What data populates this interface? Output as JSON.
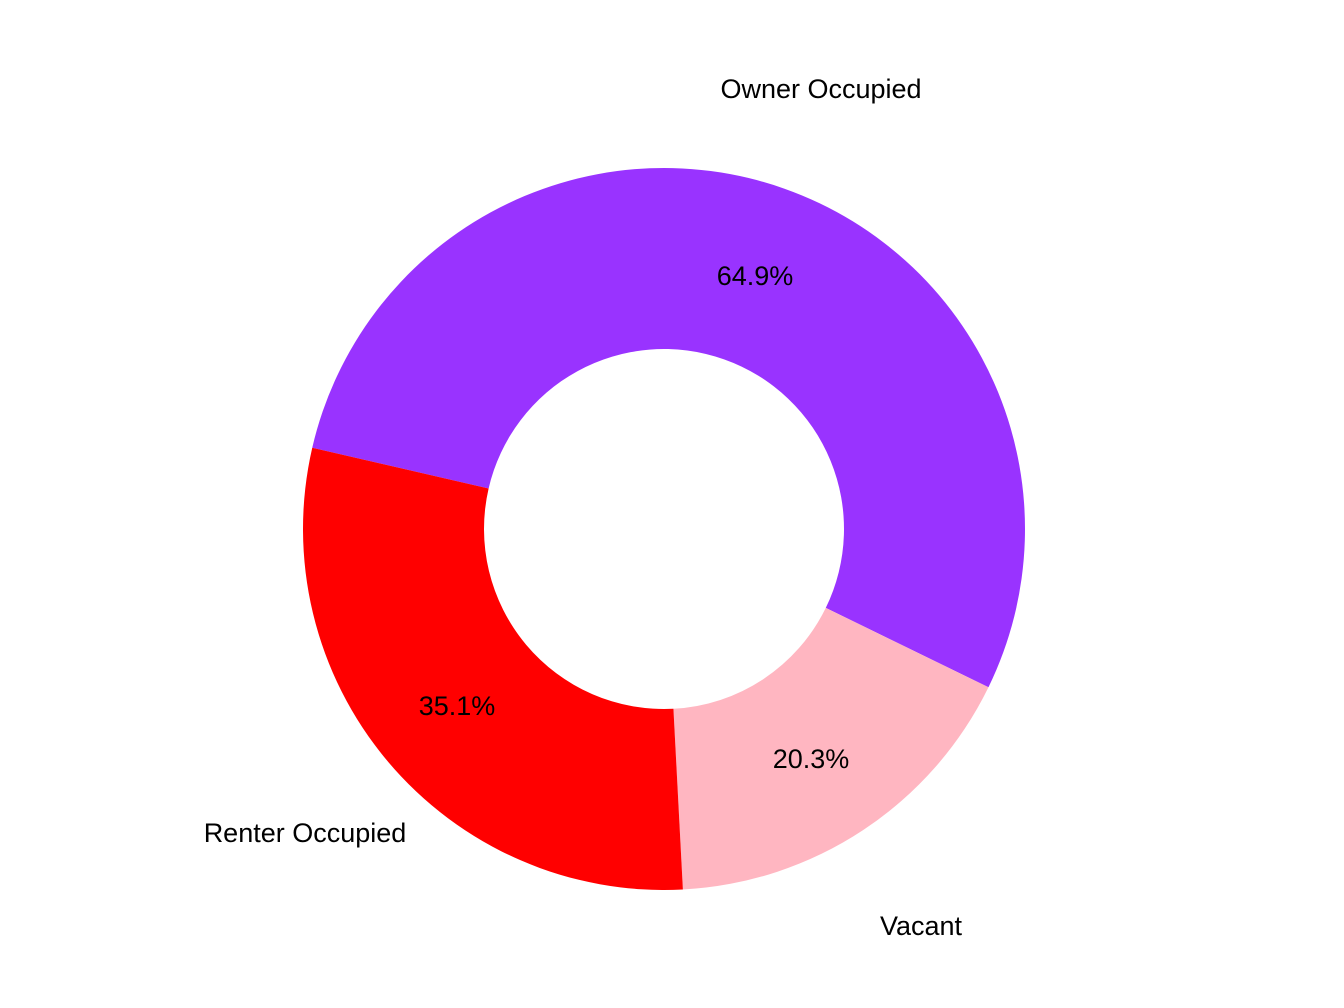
{
  "chart_data": {
    "type": "pie",
    "variant": "donut",
    "title": "",
    "categories": [
      "Owner Occupied",
      "Vacant",
      "Renter Occupied"
    ],
    "values": [
      64.9,
      20.3,
      35.1
    ],
    "value_labels": [
      "64.9%",
      "20.3%",
      "35.1%"
    ],
    "colors": [
      "#9933FF",
      "#FFB6C1",
      "#FF0000"
    ],
    "slices": [
      {
        "name": "Owner Occupied",
        "label": "64.9%",
        "color": "#9933FF",
        "start_deg": 283,
        "end_deg": 476
      },
      {
        "name": "Vacant",
        "label": "20.3%",
        "color": "#FFB6C1",
        "start_deg": 116,
        "end_deg": 177
      },
      {
        "name": "Renter Occupied",
        "label": "35.1%",
        "color": "#FF0000",
        "start_deg": 177,
        "end_deg": 283
      }
    ],
    "legend": "none (category labels placed outside slices)",
    "center": [
      664,
      529
    ],
    "outer_radius": 361,
    "inner_radius": 180
  },
  "labels": {
    "owner": "Owner Occupied",
    "vacant": "Vacant",
    "renter": "Renter Occupied",
    "owner_pct": "64.9%",
    "vacant_pct": "20.3%",
    "renter_pct": "35.1%"
  }
}
